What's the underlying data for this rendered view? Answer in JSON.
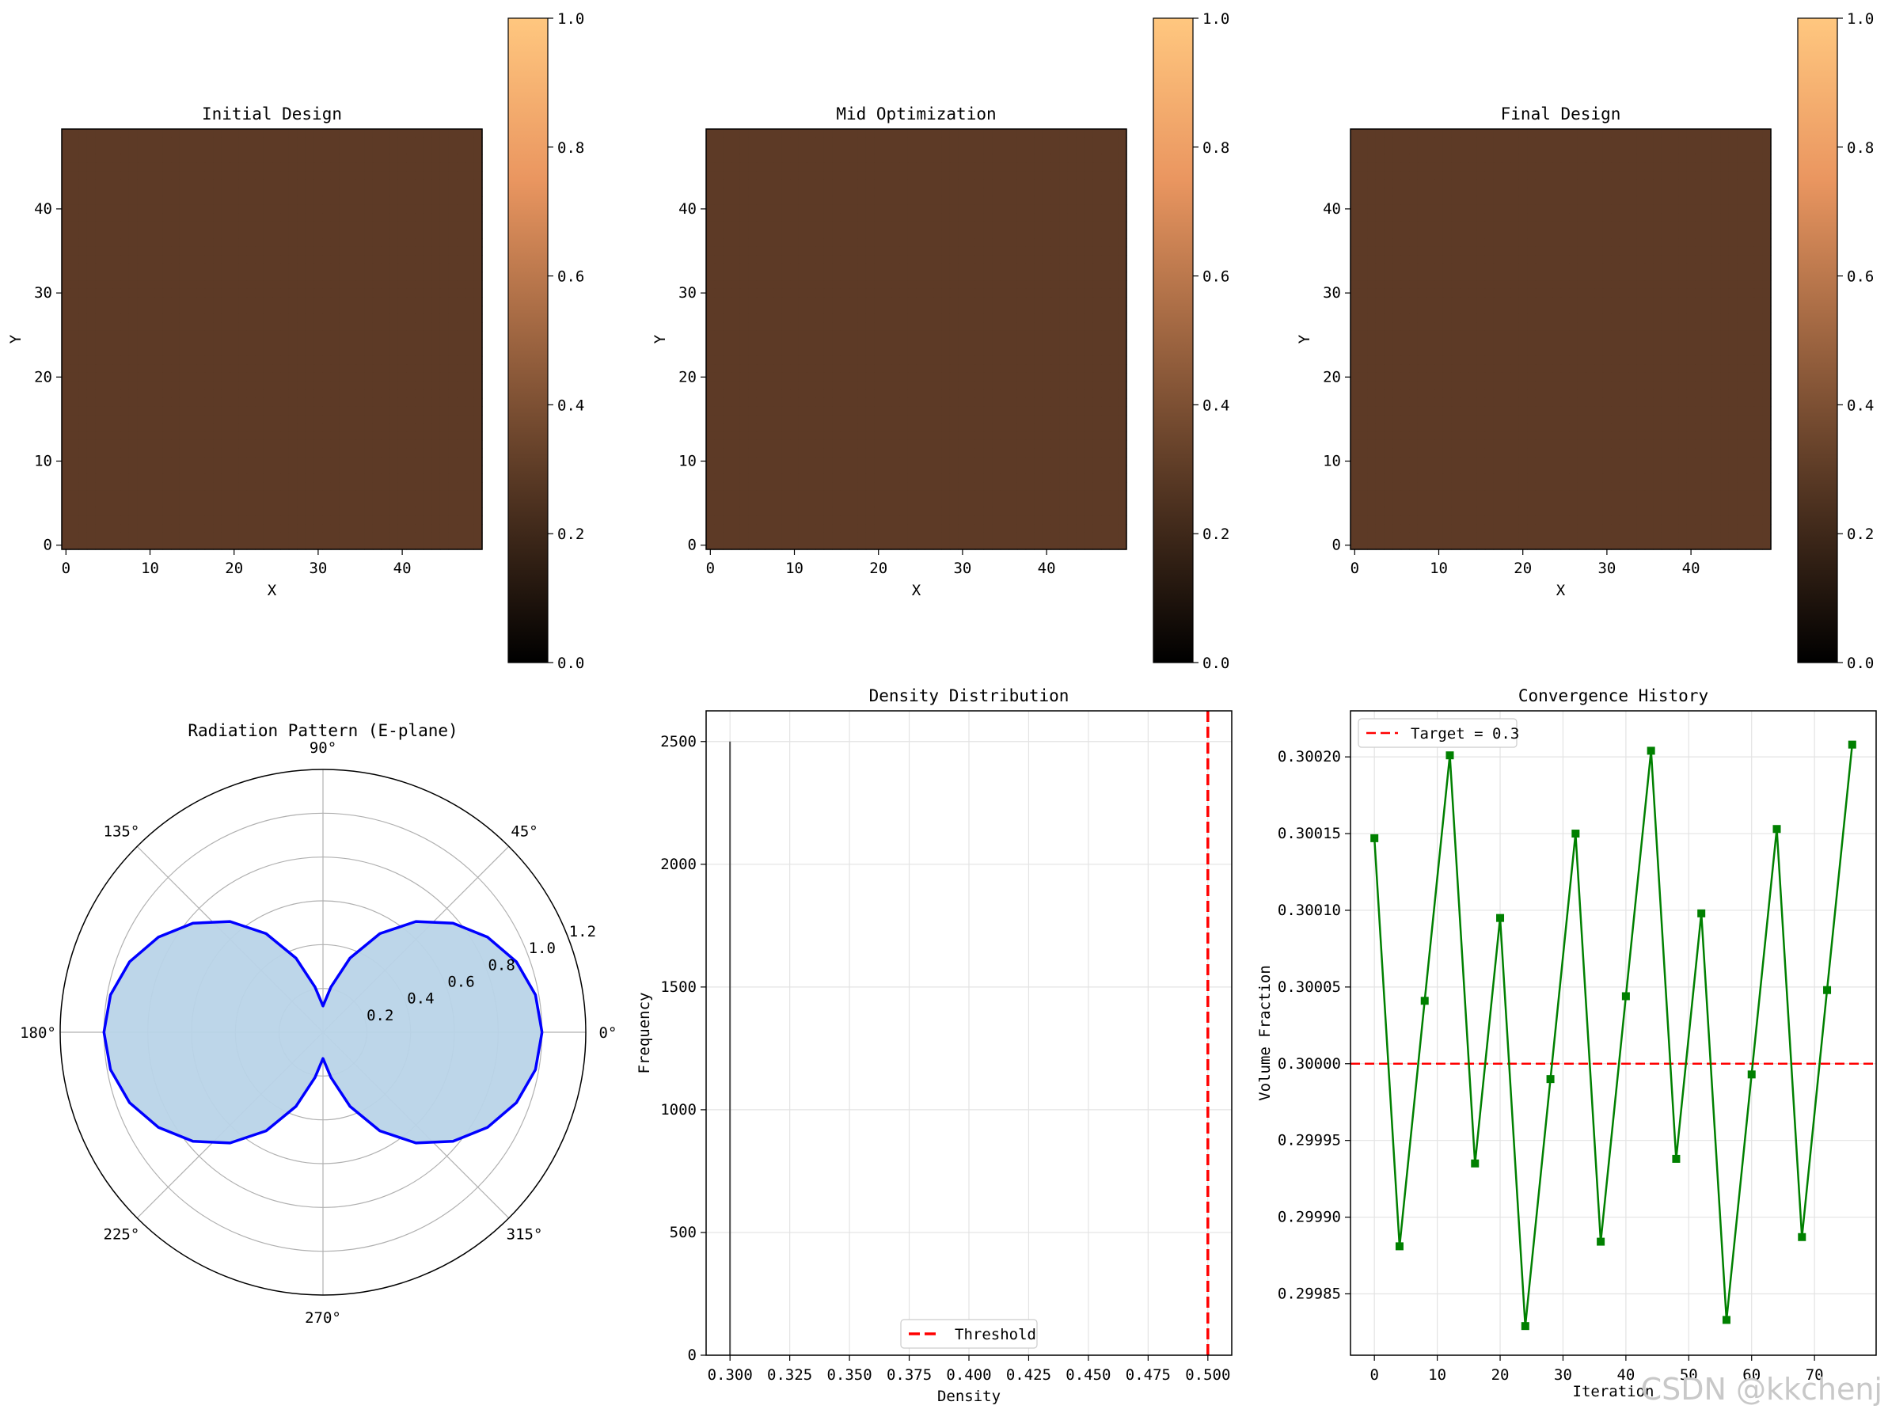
{
  "watermark": "CSDN @kkchenj",
  "colors": {
    "density_cell": "#5d3a26",
    "pattern_line": "#0000ff",
    "pattern_fill": "#b9d4e8",
    "threshold": "#ff0000",
    "series": "#008000",
    "grid": "#e3e3e3",
    "polar_grid": "#b0b0b0"
  },
  "colorbar": {
    "colormap": "copper",
    "ticks": [
      "0.0",
      "0.2",
      "0.4",
      "0.6",
      "0.8",
      "1.0"
    ]
  },
  "chart_data": [
    {
      "type": "heatmap",
      "title": "Initial Design",
      "xlabel": "X",
      "ylabel": "Y",
      "xticks": [
        "0",
        "10",
        "20",
        "30",
        "40"
      ],
      "yticks": [
        "0",
        "10",
        "20",
        "30",
        "40"
      ],
      "xlim": [
        -0.5,
        49.5
      ],
      "ylim": [
        -0.5,
        49.5
      ],
      "grid_size": [
        50,
        50
      ],
      "value": 0.3,
      "colorbar_range": [
        0,
        1
      ]
    },
    {
      "type": "heatmap",
      "title": "Mid Optimization",
      "xlabel": "X",
      "ylabel": "Y",
      "xticks": [
        "0",
        "10",
        "20",
        "30",
        "40"
      ],
      "yticks": [
        "0",
        "10",
        "20",
        "30",
        "40"
      ],
      "xlim": [
        -0.5,
        49.5
      ],
      "ylim": [
        -0.5,
        49.5
      ],
      "grid_size": [
        50,
        50
      ],
      "value": 0.3,
      "colorbar_range": [
        0,
        1
      ]
    },
    {
      "type": "heatmap",
      "title": "Final Design",
      "xlabel": "X",
      "ylabel": "Y",
      "xticks": [
        "0",
        "10",
        "20",
        "30",
        "40"
      ],
      "yticks": [
        "0",
        "10",
        "20",
        "30",
        "40"
      ],
      "xlim": [
        -0.5,
        49.5
      ],
      "ylim": [
        -0.5,
        49.5
      ],
      "grid_size": [
        50,
        50
      ],
      "value": 0.3,
      "colorbar_range": [
        0,
        1
      ]
    },
    {
      "type": "polar",
      "title": "Radiation Pattern (E-plane)",
      "angle_labels": [
        "0°",
        "45°",
        "90°",
        "135°",
        "180°",
        "225°",
        "270°",
        "315°"
      ],
      "angles_deg": [
        0,
        45,
        90,
        135,
        180,
        225,
        270,
        315
      ],
      "radial_ticks": [
        "0.2",
        "0.4",
        "0.6",
        "0.8",
        "1.0",
        "1.2"
      ],
      "rmax": 1.2,
      "theta_deg": [
        0,
        10,
        20,
        30,
        40,
        50,
        60,
        70,
        80,
        90,
        100,
        110,
        120,
        130,
        140,
        150,
        160,
        170,
        180,
        190,
        200,
        210,
        220,
        230,
        240,
        250,
        260,
        270,
        280,
        290,
        300,
        310,
        320,
        330,
        340,
        350,
        360
      ],
      "r": [
        1.0,
        0.985,
        0.94,
        0.868,
        0.775,
        0.66,
        0.52,
        0.36,
        0.21,
        0.12,
        0.21,
        0.36,
        0.52,
        0.66,
        0.775,
        0.868,
        0.94,
        0.985,
        1.0,
        0.985,
        0.94,
        0.868,
        0.775,
        0.66,
        0.52,
        0.36,
        0.21,
        0.12,
        0.21,
        0.36,
        0.52,
        0.66,
        0.775,
        0.868,
        0.94,
        0.985,
        1.0
      ]
    },
    {
      "type": "bar",
      "title": "Density Distribution",
      "xlabel": "Density",
      "ylabel": "Frequency",
      "xlim": [
        0.29,
        0.51
      ],
      "ylim": [
        0,
        2625
      ],
      "xticks": [
        "0.300",
        "0.325",
        "0.350",
        "0.375",
        "0.400",
        "0.425",
        "0.450",
        "0.475",
        "0.500"
      ],
      "yticks": [
        "0",
        "500",
        "1000",
        "1500",
        "2000",
        "2500"
      ],
      "bars": [
        {
          "x": 0.3,
          "count": 2500
        }
      ],
      "threshold": 0.5,
      "legend": [
        "Threshold"
      ],
      "legend_loc": "lower center",
      "grid": true
    },
    {
      "type": "line",
      "title": "Convergence History",
      "xlabel": "Iteration",
      "ylabel": "Volume Fraction",
      "xlim": [
        -3.8,
        79.8
      ],
      "ylim": [
        0.29981,
        0.30023
      ],
      "xticks": [
        "0",
        "10",
        "20",
        "30",
        "40",
        "50",
        "60",
        "70"
      ],
      "yticks": [
        "0.29985",
        "0.29990",
        "0.29995",
        "0.30000",
        "0.30005",
        "0.30010",
        "0.30015",
        "0.30020"
      ],
      "x": [
        0,
        4,
        8,
        12,
        16,
        20,
        24,
        28,
        32,
        36,
        40,
        44,
        48,
        52,
        56,
        60,
        64,
        68,
        72,
        76
      ],
      "y": [
        0.300147,
        0.299881,
        0.300041,
        0.300201,
        0.299935,
        0.300095,
        0.299829,
        0.29999,
        0.30015,
        0.299884,
        0.300044,
        0.300204,
        0.299938,
        0.300098,
        0.299833,
        0.299993,
        0.300153,
        0.299887,
        0.300048,
        0.300208
      ],
      "target": 0.3,
      "legend": [
        "Target = 0.3"
      ],
      "legend_loc": "upper left",
      "grid": true
    }
  ]
}
